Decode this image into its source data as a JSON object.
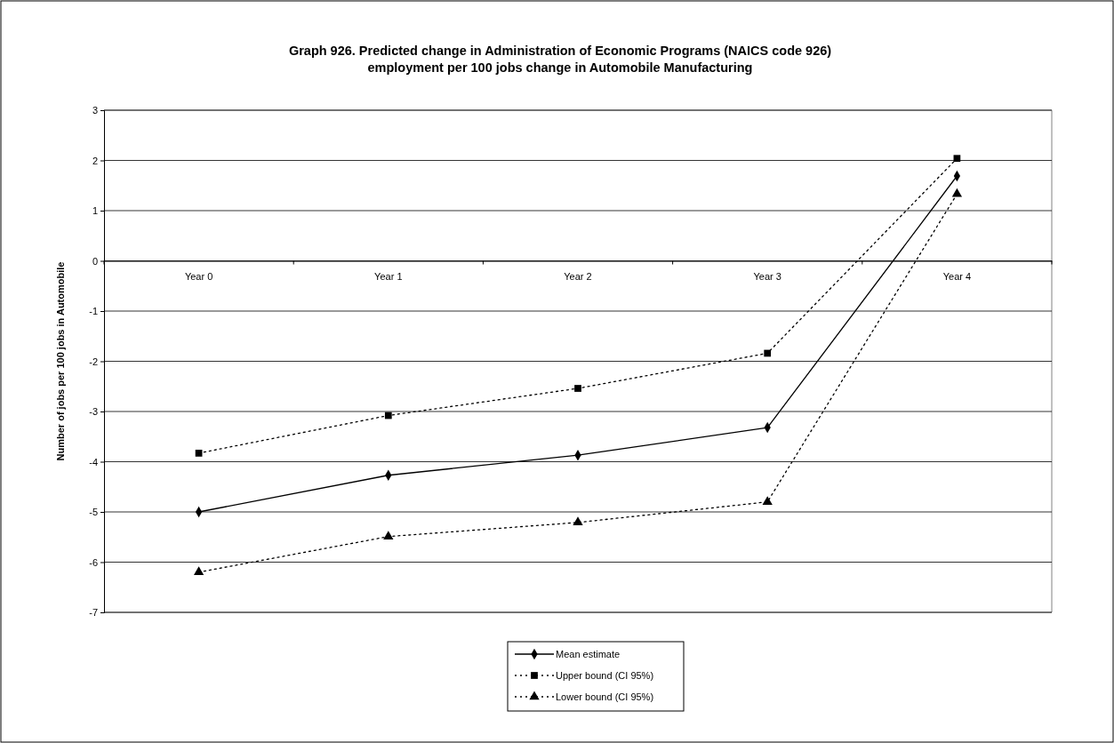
{
  "chart_data": {
    "type": "line",
    "title": "Graph 926.  Predicted change in Administration of Economic Programs (NAICS code 926)\nemployment per 100 jobs change in Automobile Manufacturing",
    "ylabel": "Number of jobs per 100 jobs in Automobile",
    "categories": [
      "Year 0",
      "Year 1",
      "Year 2",
      "Year 3",
      "Year 4"
    ],
    "series": [
      {
        "name": "Mean estimate",
        "color": "#000000",
        "marker": "diamond",
        "line_style": "solid",
        "values": [
          -5.0,
          -4.27,
          -3.87,
          -3.32,
          1.69
        ]
      },
      {
        "name": "Upper bound (CI 95%)",
        "color": "#000000",
        "marker": "square",
        "line_style": "dotted",
        "values": [
          -3.83,
          -3.08,
          -2.54,
          -1.84,
          2.04
        ]
      },
      {
        "name": "Lower bound (CI 95%)",
        "color": "#000000",
        "marker": "triangle",
        "line_style": "dotted",
        "values": [
          -6.2,
          -5.49,
          -5.21,
          -4.8,
          1.33
        ]
      }
    ],
    "ylim": [
      -7,
      3
    ],
    "yticks": [
      -7,
      -6,
      -5,
      -4,
      -3,
      -2,
      -1,
      0,
      1,
      2,
      3
    ],
    "grid": "y",
    "legend": "bottom"
  }
}
